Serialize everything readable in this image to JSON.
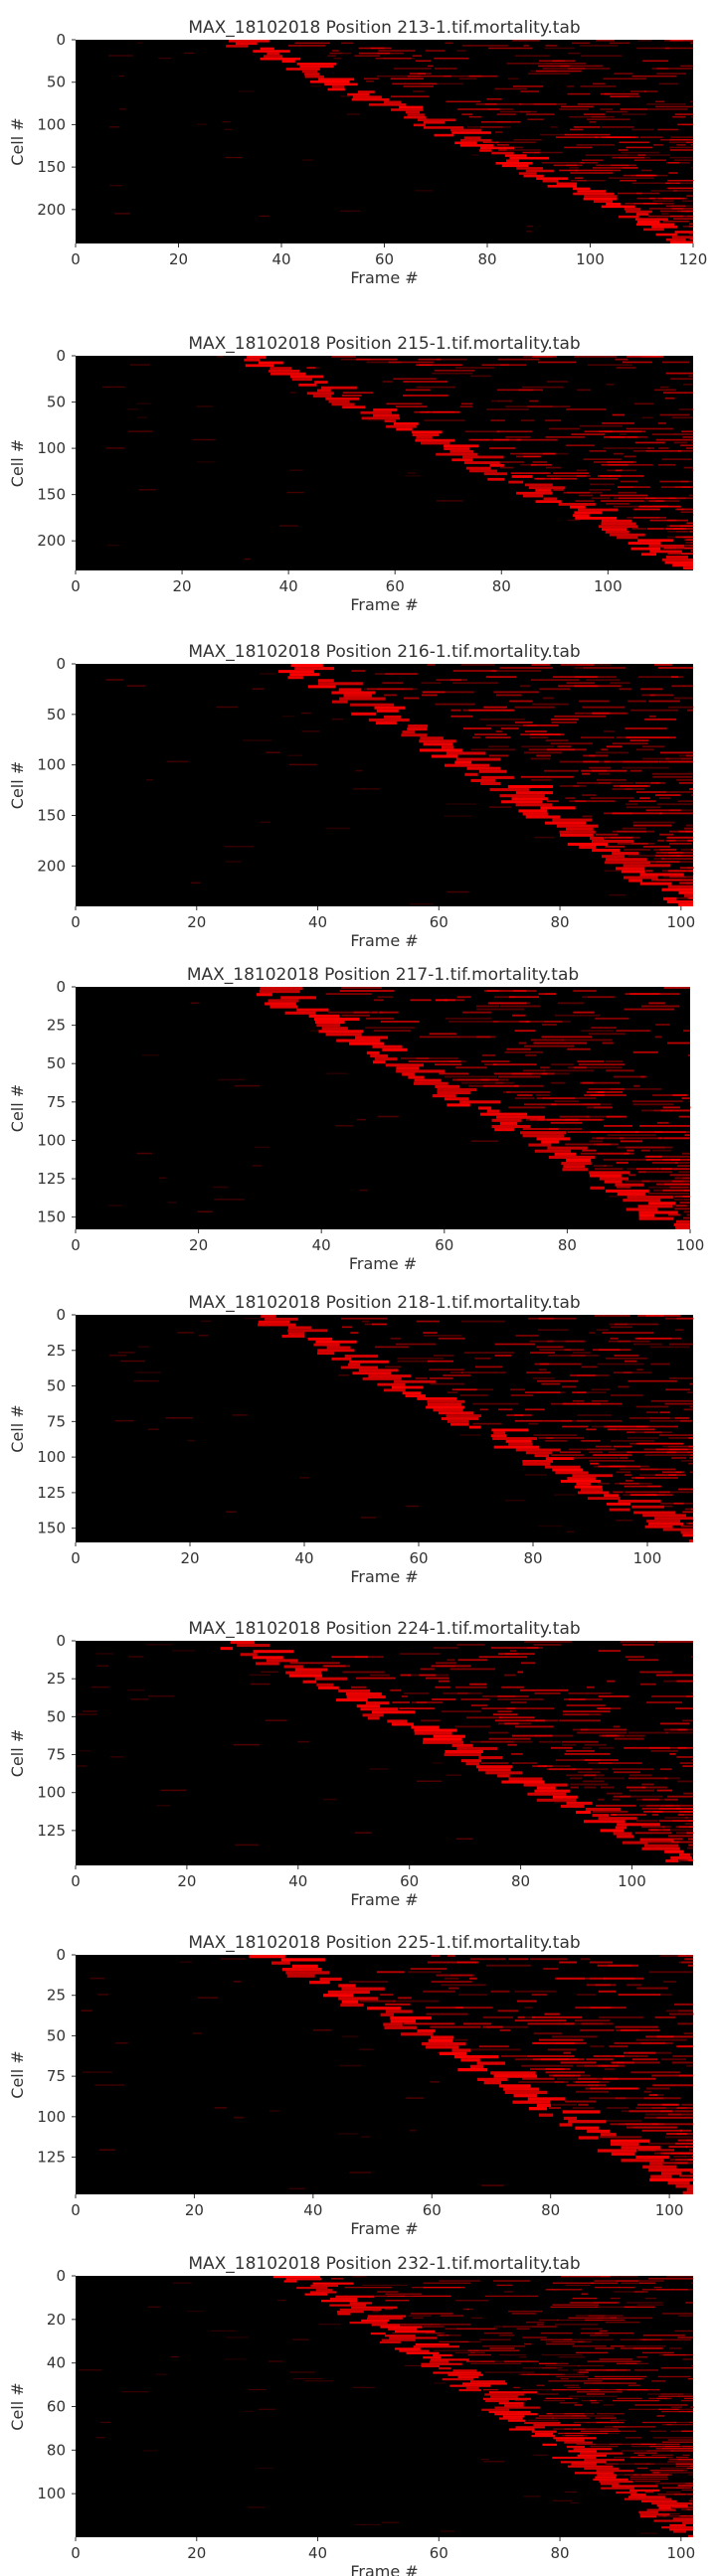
{
  "figure": {
    "background": "#ffffff",
    "plot_background": "#000000",
    "mark_color": "#ff0000",
    "text_color": "#333333"
  },
  "chart_data": [
    {
      "type": "heatmap",
      "title": "MAX_18102018 Position 213-1.tif.mortality.tab",
      "xlabel": "Frame #",
      "ylabel": "Cell #",
      "xlim": [
        0,
        120
      ],
      "ylim": [
        240,
        0
      ],
      "xticks": [
        0,
        20,
        40,
        60,
        80,
        100,
        120
      ],
      "yticks": [
        0,
        50,
        100,
        150,
        200
      ],
      "grid": false,
      "death_onset": {
        "cell_start": 0,
        "cell_end": 240,
        "frame_start": 29,
        "frame_end": 119
      }
    },
    {
      "type": "heatmap",
      "title": "MAX_18102018 Position 215-1.tif.mortality.tab",
      "xlabel": "Frame #",
      "ylabel": "Cell #",
      "xlim": [
        0,
        116
      ],
      "ylim": [
        232,
        0
      ],
      "xticks": [
        0,
        20,
        40,
        60,
        80,
        100
      ],
      "yticks": [
        0,
        50,
        100,
        150,
        200
      ],
      "grid": false,
      "death_onset": {
        "cell_start": 0,
        "cell_end": 232,
        "frame_start": 31,
        "frame_end": 115
      }
    },
    {
      "type": "heatmap",
      "title": "MAX_18102018 Position 216-1.tif.mortality.tab",
      "xlabel": "Frame #",
      "ylabel": "Cell #",
      "xlim": [
        0,
        102
      ],
      "ylim": [
        240,
        0
      ],
      "xticks": [
        0,
        20,
        40,
        60,
        80,
        100
      ],
      "yticks": [
        0,
        50,
        100,
        150,
        200
      ],
      "grid": false,
      "death_onset": {
        "cell_start": 0,
        "cell_end": 240,
        "frame_start": 34,
        "frame_end": 101
      }
    },
    {
      "type": "heatmap",
      "title": "MAX_18102018 Position 217-1.tif.mortality.tab",
      "xlabel": "Frame #",
      "ylabel": "Cell #",
      "xlim": [
        0,
        100
      ],
      "ylim": [
        158,
        0
      ],
      "xticks": [
        0,
        20,
        40,
        60,
        80,
        100
      ],
      "yticks": [
        0,
        25,
        50,
        75,
        100,
        125,
        150
      ],
      "grid": false,
      "death_onset": {
        "cell_start": 0,
        "cell_end": 158,
        "frame_start": 28,
        "frame_end": 98
      }
    },
    {
      "type": "heatmap",
      "title": "MAX_18102018 Position 218-1.tif.mortality.tab",
      "xlabel": "Frame #",
      "ylabel": "Cell #",
      "xlim": [
        0,
        108
      ],
      "ylim": [
        160,
        0
      ],
      "xticks": [
        0,
        20,
        40,
        60,
        80,
        100
      ],
      "yticks": [
        0,
        25,
        50,
        75,
        100,
        125,
        150
      ],
      "grid": false,
      "death_onset": {
        "cell_start": 0,
        "cell_end": 160,
        "frame_start": 30,
        "frame_end": 107
      }
    },
    {
      "type": "heatmap",
      "title": "MAX_18102018 Position 224-1.tif.mortality.tab",
      "xlabel": "Frame #",
      "ylabel": "Cell #",
      "xlim": [
        0,
        111
      ],
      "ylim": [
        148,
        0
      ],
      "xticks": [
        0,
        20,
        40,
        60,
        80,
        100
      ],
      "yticks": [
        0,
        25,
        50,
        75,
        100,
        125
      ],
      "grid": false,
      "death_onset": {
        "cell_start": 0,
        "cell_end": 148,
        "frame_start": 25,
        "frame_end": 110
      }
    },
    {
      "type": "heatmap",
      "title": "MAX_18102018 Position 225-1.tif.mortality.tab",
      "xlabel": "Frame #",
      "ylabel": "Cell #",
      "xlim": [
        0,
        104
      ],
      "ylim": [
        148,
        0
      ],
      "xticks": [
        0,
        20,
        40,
        60,
        80,
        100
      ],
      "yticks": [
        0,
        25,
        50,
        75,
        100,
        125
      ],
      "grid": false,
      "death_onset": {
        "cell_start": 0,
        "cell_end": 148,
        "frame_start": 32,
        "frame_end": 103
      }
    },
    {
      "type": "heatmap",
      "title": "MAX_18102018 Position 232-1.tif.mortality.tab",
      "xlabel": "Frame #",
      "ylabel": "Cell #",
      "xlim": [
        0,
        102
      ],
      "ylim": [
        120,
        0
      ],
      "xticks": [
        0,
        20,
        40,
        60,
        80,
        100
      ],
      "yticks": [
        0,
        20,
        40,
        60,
        80,
        100
      ],
      "grid": false,
      "death_onset": {
        "cell_start": 0,
        "cell_end": 120,
        "frame_start": 35,
        "frame_end": 101
      }
    }
  ]
}
